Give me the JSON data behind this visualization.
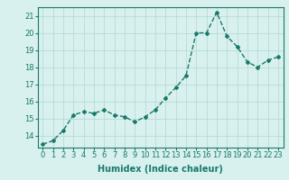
{
  "x": [
    0,
    1,
    2,
    3,
    4,
    5,
    6,
    7,
    8,
    9,
    10,
    11,
    12,
    13,
    14,
    15,
    16,
    17,
    18,
    19,
    20,
    21,
    22,
    23
  ],
  "y": [
    13.5,
    13.7,
    14.3,
    15.2,
    15.4,
    15.3,
    15.5,
    15.2,
    15.1,
    14.8,
    15.1,
    15.5,
    16.2,
    16.8,
    17.5,
    20.0,
    20.0,
    21.2,
    19.8,
    19.2,
    18.3,
    18.0,
    18.4,
    18.6
  ],
  "line_color": "#1a7a6a",
  "bg_color": "#d8f0ee",
  "grid_color": "#b0d8d4",
  "xlabel": "Humidex (Indice chaleur)",
  "ylabel_ticks": [
    14,
    15,
    16,
    17,
    18,
    19,
    20,
    21
  ],
  "xlim": [
    -0.5,
    23.5
  ],
  "ylim": [
    13.3,
    21.5
  ],
  "xtick_labels": [
    "0",
    "1",
    "2",
    "3",
    "4",
    "5",
    "6",
    "7",
    "8",
    "9",
    "10",
    "11",
    "12",
    "13",
    "14",
    "15",
    "16",
    "17",
    "18",
    "19",
    "20",
    "21",
    "22",
    "23"
  ],
  "marker": "D",
  "marker_size": 2,
  "linewidth": 1.0,
  "xlabel_fontsize": 7,
  "tick_fontsize": 6,
  "label_color": "#1a7a6a"
}
